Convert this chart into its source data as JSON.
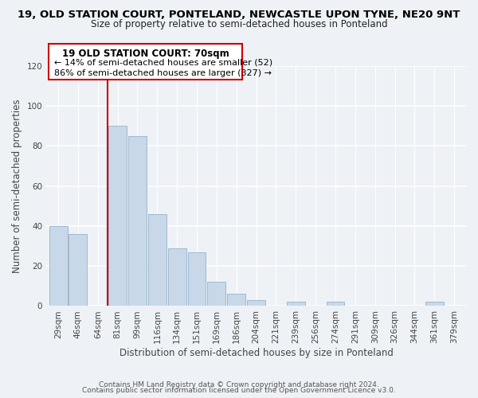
{
  "title": "19, OLD STATION COURT, PONTELAND, NEWCASTLE UPON TYNE, NE20 9NT",
  "subtitle": "Size of property relative to semi-detached houses in Ponteland",
  "xlabel": "Distribution of semi-detached houses by size in Ponteland",
  "ylabel": "Number of semi-detached properties",
  "categories": [
    "29sqm",
    "46sqm",
    "64sqm",
    "81sqm",
    "99sqm",
    "116sqm",
    "134sqm",
    "151sqm",
    "169sqm",
    "186sqm",
    "204sqm",
    "221sqm",
    "239sqm",
    "256sqm",
    "274sqm",
    "291sqm",
    "309sqm",
    "326sqm",
    "344sqm",
    "361sqm",
    "379sqm"
  ],
  "values": [
    40,
    36,
    0,
    90,
    85,
    46,
    29,
    27,
    12,
    6,
    3,
    0,
    2,
    0,
    2,
    0,
    0,
    0,
    0,
    2,
    0
  ],
  "bar_color": "#c8d8e8",
  "bar_edge_color": "#a0b8d0",
  "marker_line_color": "#cc0000",
  "marker_label": "19 OLD STATION COURT: 70sqm",
  "annotation_smaller": "← 14% of semi-detached houses are smaller (52)",
  "annotation_larger": "86% of semi-detached houses are larger (327) →",
  "box_color": "#cc0000",
  "ylim": [
    0,
    120
  ],
  "footer1": "Contains HM Land Registry data © Crown copyright and database right 2024.",
  "footer2": "Contains public sector information licensed under the Open Government Licence v3.0.",
  "bg_color": "#eef2f6",
  "title_fontsize": 9.5,
  "subtitle_fontsize": 8.5,
  "label_fontsize": 8.5,
  "tick_fontsize": 7.5,
  "footer_fontsize": 6.5
}
